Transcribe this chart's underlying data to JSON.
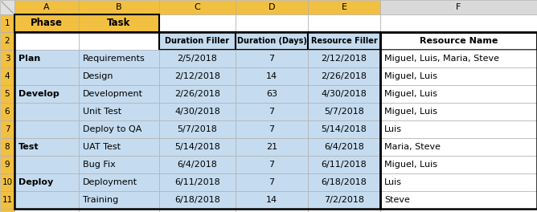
{
  "col_letters": [
    "A",
    "B",
    "C",
    "D",
    "E",
    "F"
  ],
  "row1_data": [
    "Phase",
    "Task",
    "",
    "",
    "",
    ""
  ],
  "row2_data": [
    "",
    "",
    "Duration Filler",
    "Duration (Days)",
    "Resource Filler",
    "Resource Name"
  ],
  "rows": [
    [
      "Plan",
      "Requirements",
      "2/5/2018",
      "7",
      "2/12/2018",
      "Miguel, Luis, Maria, Steve"
    ],
    [
      "",
      "Design",
      "2/12/2018",
      "14",
      "2/26/2018",
      "Miguel, Luis"
    ],
    [
      "Develop",
      "Development",
      "2/26/2018",
      "63",
      "4/30/2018",
      "Miguel, Luis"
    ],
    [
      "",
      "Unit Test",
      "4/30/2018",
      "7",
      "5/7/2018",
      "Miguel, Luis"
    ],
    [
      "",
      "Deploy to QA",
      "5/7/2018",
      "7",
      "5/14/2018",
      "Luis"
    ],
    [
      "Test",
      "UAT Test",
      "5/14/2018",
      "21",
      "6/4/2018",
      "Maria, Steve"
    ],
    [
      "",
      "Bug Fix",
      "6/4/2018",
      "7",
      "6/11/2018",
      "Miguel, Luis"
    ],
    [
      "Deploy",
      "Deployment",
      "6/11/2018",
      "7",
      "6/18/2018",
      "Luis"
    ],
    [
      "",
      "Training",
      "6/18/2018",
      "14",
      "7/2/2018",
      "Steve"
    ]
  ],
  "col_header_yellow_bg": "#F2C040",
  "col_header_gray_bg": "#D9D9D9",
  "row_num_col_yellow_bg": "#F2C040",
  "row1_ab_bg": "#F2C040",
  "row1_cdef_bg": "#FFFFFF",
  "row2_ab_bg": "#FFFFFF",
  "row2_cde_bg": "#C5DCF0",
  "row2_f_bg": "#FFFFFF",
  "data_blue_bg": "#C5DCF0",
  "data_f_bg": "#FFFFFF",
  "corner_bg": "#E0E0E0",
  "grid_thin": "#B0B0B0",
  "grid_thick": "#000000",
  "text_black": "#000000",
  "figsize": [
    6.68,
    2.64
  ],
  "dpi": 100
}
